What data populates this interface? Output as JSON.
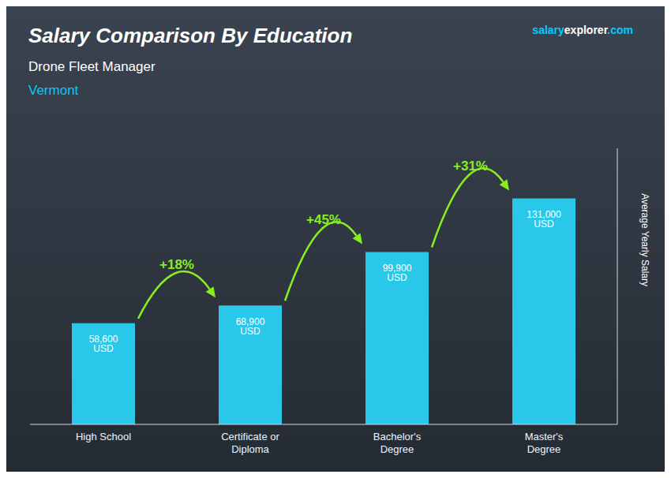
{
  "chart_data": {
    "type": "bar",
    "title": "Salary Comparison By Education",
    "subtitle": "Drone Fleet Manager",
    "ylabel": "Average Yearly Salary",
    "categories": [
      "High School",
      "Certificate or\nDiploma",
      "Bachelor's\nDegree",
      "Master's\nDegree"
    ],
    "values": [
      58600,
      68900,
      99900,
      131000
    ],
    "value_labels": [
      "58,600 USD",
      "68,900 USD",
      "99,900 USD",
      "131,000 USD"
    ],
    "data_labels": true,
    "color": "#29c8e8",
    "ylim": [
      0,
      160000
    ],
    "yticks": [],
    "tick_labels": "x",
    "grid": false,
    "annotations": {
      "location": {
        "text": "Vermont",
        "color": "#00ccff"
      },
      "watermark": [
        {
          "text": "salary",
          "color": "#00ccff"
        },
        {
          "text": "explorer",
          "color": "#ffffff"
        },
        {
          "text": ".com",
          "color": "#00ccff"
        }
      ],
      "changes": [
        {
          "text": "+18%",
          "color": "#88ee22"
        },
        {
          "text": "+45%",
          "color": "#88ee22"
        },
        {
          "text": "+31%",
          "color": "#88ee22"
        }
      ]
    }
  }
}
